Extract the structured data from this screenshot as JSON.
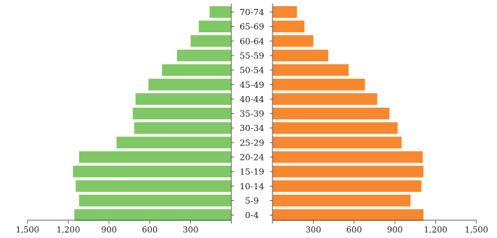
{
  "chart_data": {
    "type": "bar",
    "orientation": "horizontal",
    "layout": "population-pyramid",
    "categories": [
      "0-4",
      "5-9",
      "10-14",
      "15-19",
      "20-24",
      "25-29",
      "30-34",
      "35-39",
      "40-44",
      "45-49",
      "50-54",
      "55-59",
      "60-64",
      "65-69",
      "70-74"
    ],
    "series": [
      {
        "side": "left",
        "color": "#80c765",
        "values": [
          1155,
          1120,
          1145,
          1165,
          1120,
          845,
          715,
          725,
          705,
          610,
          510,
          400,
          300,
          240,
          160
        ]
      },
      {
        "side": "right",
        "color": "#f7882f",
        "values": [
          1110,
          1015,
          1095,
          1110,
          1105,
          950,
          920,
          860,
          770,
          680,
          560,
          410,
          300,
          235,
          180
        ]
      }
    ],
    "xlim": [
      0,
      1500
    ],
    "left_tick_labels": [
      "1,500",
      "1,200",
      "900",
      "600",
      "300"
    ],
    "right_tick_labels": [
      "300",
      "600",
      "900",
      "1,200",
      "1,500"
    ],
    "title": "",
    "xlabel": "",
    "ylabel": "",
    "grid": false,
    "legend": "none"
  }
}
